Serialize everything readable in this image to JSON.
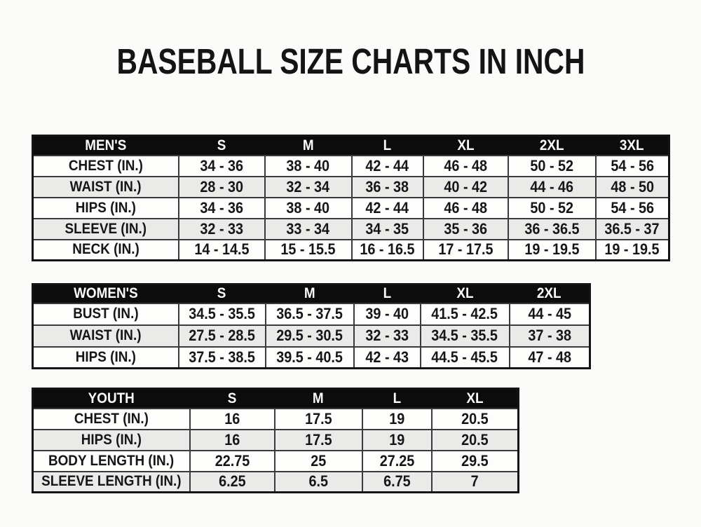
{
  "page": {
    "title": "BASEBALL SIZE CHARTS IN INCH"
  },
  "colors": {
    "page_bg": "#fbfbfa",
    "table_header_bg": "#0c0c0c",
    "table_header_text": "#fafafa",
    "row_white": "#fdfdfc",
    "row_stripe": "#eaeae8",
    "grid_line": "#3a3a3a",
    "outer_border": "#141414",
    "text": "#161616"
  },
  "tables": [
    {
      "id": "mens",
      "header": [
        "MEN'S",
        "S",
        "M",
        "L",
        "XL",
        "2XL",
        "3XL"
      ],
      "rows": [
        {
          "label": "CHEST (IN.)",
          "values": [
            "34 - 36",
            "38 - 40",
            "42 - 44",
            "46 - 48",
            "50 - 52",
            "54 - 56"
          ]
        },
        {
          "label": "WAIST (IN.)",
          "values": [
            "28 - 30",
            "32 - 34",
            "36 - 38",
            "40 - 42",
            "44 - 46",
            "48 - 50"
          ]
        },
        {
          "label": "HIPS (IN.)",
          "values": [
            "34 - 36",
            "38 - 40",
            "42 - 44",
            "46 - 48",
            "50 - 52",
            "54 - 56"
          ]
        },
        {
          "label": "SLEEVE (IN.)",
          "values": [
            "32 - 33",
            "33 - 34",
            "34 - 35",
            "35 - 36",
            "36 - 36.5",
            "36.5 - 37"
          ]
        },
        {
          "label": "NECK (IN.)",
          "values": [
            "14 - 14.5",
            "15 - 15.5",
            "16 - 16.5",
            "17 - 17.5",
            "19 - 19.5",
            "19 - 19.5"
          ]
        }
      ]
    },
    {
      "id": "womens",
      "header": [
        "WOMEN'S",
        "S",
        "M",
        "L",
        "XL",
        "2XL"
      ],
      "rows": [
        {
          "label": "BUST (IN.)",
          "values": [
            "34.5 - 35.5",
            "36.5 - 37.5",
            "39 - 40",
            "41.5 - 42.5",
            "44 - 45"
          ]
        },
        {
          "label": "WAIST (IN.)",
          "values": [
            "27.5 - 28.5",
            "29.5 - 30.5",
            "32 - 33",
            "34.5 - 35.5",
            "37 - 38"
          ]
        },
        {
          "label": "HIPS (IN.)",
          "values": [
            "37.5 - 38.5",
            "39.5 - 40.5",
            "42 - 43",
            "44.5 - 45.5",
            "47 - 48"
          ]
        }
      ]
    },
    {
      "id": "youth",
      "header": [
        "YOUTH",
        "S",
        "M",
        "L",
        "XL"
      ],
      "rows": [
        {
          "label": "CHEST (IN.)",
          "values": [
            "16",
            "17.5",
            "19",
            "20.5"
          ]
        },
        {
          "label": "HIPS (IN.)",
          "values": [
            "16",
            "17.5",
            "19",
            "20.5"
          ]
        },
        {
          "label": "BODY LENGTH (IN.)",
          "values": [
            "22.75",
            "25",
            "27.25",
            "29.5"
          ]
        },
        {
          "label": "SLEEVE LENGTH (IN.)",
          "values": [
            "6.25",
            "6.5",
            "6.75",
            "7"
          ]
        }
      ]
    }
  ]
}
